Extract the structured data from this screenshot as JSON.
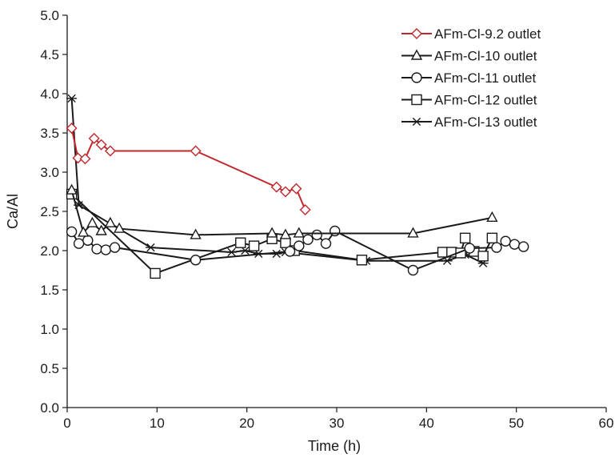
{
  "chart_data": {
    "type": "scatter",
    "xlabel": "Time (h)",
    "ylabel": "Ca/Al",
    "xlim": [
      0,
      60
    ],
    "ylim": [
      0,
      5
    ],
    "x_ticks": [
      "0",
      "10",
      "20",
      "30",
      "40",
      "50",
      "60"
    ],
    "y_ticks": [
      "0.0",
      "0.5",
      "1.0",
      "1.5",
      "2.0",
      "2.5",
      "3.0",
      "3.5",
      "4.0",
      "4.5",
      "5.0"
    ],
    "grid": false,
    "legend_position": "top-right",
    "series": [
      {
        "name": "AFm-Cl-9.2 outlet",
        "marker": "diamond",
        "color": "#c0272d",
        "x": [
          0.5,
          1.2,
          2.0,
          3.0,
          3.8,
          4.8,
          14.3,
          23.3,
          24.3,
          25.5,
          26.5
        ],
        "y": [
          3.56,
          3.18,
          3.17,
          3.43,
          3.35,
          3.27,
          3.27,
          2.81,
          2.75,
          2.79,
          2.52
        ]
      },
      {
        "name": "AFm-Cl-10 outlet",
        "marker": "triangle",
        "color": "#1a1a1a",
        "x": [
          0.5,
          1.8,
          2.8,
          3.8,
          4.8,
          5.8,
          14.3,
          22.8,
          24.3,
          25.8,
          38.5,
          47.3
        ],
        "y": [
          2.77,
          2.23,
          2.35,
          2.25,
          2.35,
          2.28,
          2.2,
          2.22,
          2.2,
          2.22,
          2.22,
          2.42
        ]
      },
      {
        "name": "AFm-Cl-11 outlet",
        "marker": "circle",
        "color": "#1a1a1a",
        "x": [
          0.5,
          1.3,
          2.3,
          3.3,
          4.3,
          5.3,
          14.3,
          24.8,
          25.8,
          26.8,
          27.8,
          28.8,
          29.8,
          38.5,
          44.8,
          47.8,
          48.8,
          49.8,
          50.8
        ],
        "y": [
          2.24,
          2.09,
          2.13,
          2.02,
          2.01,
          2.04,
          1.88,
          1.99,
          2.06,
          2.14,
          2.2,
          2.09,
          2.25,
          1.75,
          2.03,
          2.04,
          2.12,
          2.08,
          2.05
        ]
      },
      {
        "name": "AFm-Cl-12 outlet",
        "marker": "square",
        "color": "#1a1a1a",
        "x": [
          0.5,
          9.8,
          19.3,
          20.8,
          22.8,
          24.3,
          25.3,
          32.8,
          41.8,
          42.8,
          43.8,
          44.3,
          45.3,
          46.3,
          47.3
        ],
        "y": [
          2.72,
          1.71,
          2.1,
          2.06,
          2.15,
          2.1,
          2.0,
          1.88,
          1.98,
          1.98,
          1.97,
          2.16,
          1.99,
          1.93,
          2.16
        ]
      },
      {
        "name": "AFm-Cl-13 outlet",
        "marker": "asterisk",
        "color": "#1a1a1a",
        "x": [
          0.5,
          1.3,
          9.3,
          18.3,
          19.8,
          21.3,
          23.3,
          24.3,
          33.3,
          42.3,
          44.3,
          46.3
        ],
        "y": [
          3.94,
          2.58,
          2.04,
          1.98,
          2.0,
          1.96,
          1.96,
          1.98,
          1.87,
          1.87,
          1.95,
          1.84
        ]
      }
    ]
  }
}
